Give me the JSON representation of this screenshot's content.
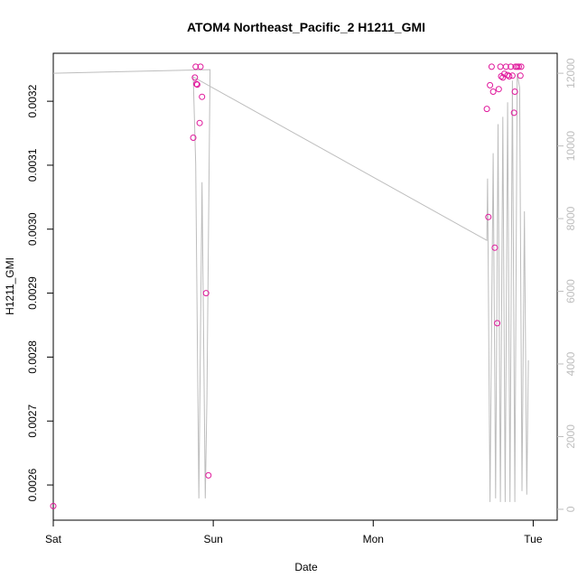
{
  "chart_data": {
    "type": "scatter",
    "title": "ATOM4 Northeast_Pacific_2 H1211_GMI",
    "xlabel": "Date",
    "ylabel": "H1211_GMI",
    "y2label": "",
    "xlim": [
      0,
      3.15
    ],
    "ylim": [
      0.002545,
      0.003275
    ],
    "y2lim": [
      -300,
      12550
    ],
    "x_ticks": [
      {
        "value": 0,
        "label": "Sat"
      },
      {
        "value": 1,
        "label": "Sun"
      },
      {
        "value": 2,
        "label": "Mon"
      },
      {
        "value": 3,
        "label": "Tue"
      }
    ],
    "y_ticks": [
      {
        "value": 0.0026,
        "label": "0.0026"
      },
      {
        "value": 0.0027,
        "label": "0.0027"
      },
      {
        "value": 0.0028,
        "label": "0.0028"
      },
      {
        "value": 0.0029,
        "label": "0.0029"
      },
      {
        "value": 0.003,
        "label": "0.0030"
      },
      {
        "value": 0.0031,
        "label": "0.0031"
      },
      {
        "value": 0.0032,
        "label": "0.0032"
      }
    ],
    "y2_ticks": [
      {
        "value": 0,
        "label": "0"
      },
      {
        "value": 2000,
        "label": "2000"
      },
      {
        "value": 4000,
        "label": "4000"
      },
      {
        "value": 6000,
        "label": "6000"
      },
      {
        "value": 8000,
        "label": "8000"
      },
      {
        "value": 10000,
        "label": "10000"
      },
      {
        "value": 12000,
        "label": "12000"
      }
    ],
    "points_color": "#e0179b",
    "line_color": "#bdbdbd",
    "series": [
      {
        "axis": "left",
        "style": "points",
        "x": [
          0.0,
          0.875,
          0.885,
          0.89,
          0.895,
          0.9,
          0.915,
          0.92,
          0.93,
          0.955,
          0.97,
          2.71,
          2.72,
          2.73,
          2.74,
          2.75,
          2.76,
          2.775,
          2.785,
          2.795,
          2.8,
          2.81,
          2.82,
          2.83,
          2.84,
          2.85,
          2.86,
          2.87,
          2.88,
          2.885,
          2.89,
          2.9,
          2.91,
          2.92,
          2.925
        ],
        "y": [
          0.002567,
          0.003143,
          0.003237,
          0.003254,
          0.003227,
          0.003226,
          0.003166,
          0.003254,
          0.003207,
          0.0029,
          0.002615,
          0.003188,
          0.003019,
          0.003225,
          0.003254,
          0.003215,
          0.002971,
          0.002853,
          0.003219,
          0.003254,
          0.003239,
          0.003237,
          0.003243,
          0.003254,
          0.003241,
          0.003239,
          0.003254,
          0.00324,
          0.003182,
          0.003215,
          0.003254,
          0.003254,
          0.003254,
          0.00324,
          0.003254
        ]
      },
      {
        "axis": "right",
        "style": "line",
        "x": [
          0.0,
          0.98,
          0.96,
          0.95,
          0.93,
          0.91,
          0.89,
          0.875,
          2.71,
          2.715,
          2.73,
          2.75,
          2.765,
          2.78,
          2.795,
          2.81,
          2.825,
          2.84,
          2.855,
          2.87,
          2.885,
          2.9,
          2.915,
          2.93,
          2.945,
          2.96,
          2.97
        ],
        "y": [
          12000,
          12100,
          3000,
          300,
          9000,
          300,
          9500,
          11900,
          7400,
          9100,
          200,
          9800,
          300,
          10600,
          200,
          10800,
          200,
          11200,
          200,
          11800,
          200,
          12000,
          11600,
          500,
          8200,
          400,
          4100
        ]
      }
    ]
  }
}
